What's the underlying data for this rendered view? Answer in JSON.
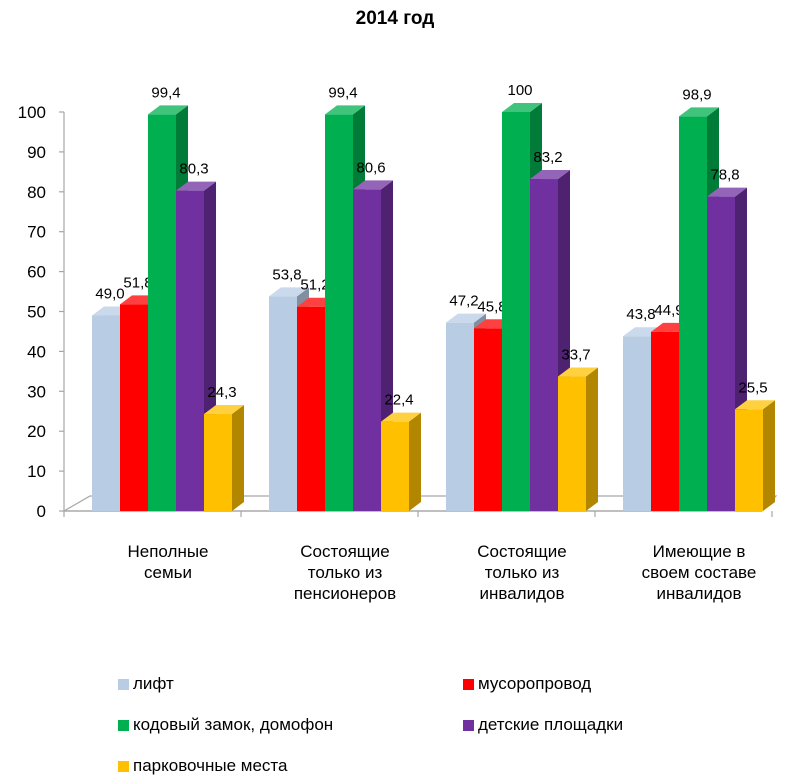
{
  "chart_data": {
    "type": "bar",
    "title": "2014 год",
    "categories": [
      [
        "Неполные",
        "семьи"
      ],
      [
        "Состоящие",
        "только из",
        "пенсионеров"
      ],
      [
        "Состоящие",
        "только из",
        "инвалидов"
      ],
      [
        "Имеющие в",
        "своем составе",
        "инвалидов"
      ]
    ],
    "series": [
      {
        "name": "лифт",
        "color": "#b8cce4",
        "values": [
          49.0,
          53.8,
          47.2,
          43.8
        ],
        "labels": [
          "49,0",
          "53,8",
          "47,2",
          "43,8"
        ]
      },
      {
        "name": "мусоропровод",
        "color": "#ff0000",
        "values": [
          51.8,
          51.2,
          45.8,
          44.9
        ],
        "labels": [
          "51,8",
          "51,2",
          "45,8",
          "44,9"
        ]
      },
      {
        "name": "кодовый замок, домофон",
        "color": "#00b050",
        "values": [
          99.4,
          99.4,
          100,
          98.9
        ],
        "labels": [
          "99,4",
          "99,4",
          "100",
          "98,9"
        ]
      },
      {
        "name": "детские площадки",
        "color": "#7030a0",
        "values": [
          80.3,
          80.6,
          83.2,
          78.8
        ],
        "labels": [
          "80,3",
          "80,6",
          "83,2",
          "78,8"
        ]
      },
      {
        "name": "парковочные места",
        "color": "#ffc000",
        "values": [
          24.3,
          22.4,
          33.7,
          25.5
        ],
        "labels": [
          "24,3",
          "22,4",
          "33,7",
          "25,5"
        ]
      }
    ],
    "ylim": [
      0,
      100
    ],
    "yticks": [
      0,
      10,
      20,
      30,
      40,
      50,
      60,
      70,
      80,
      90,
      100
    ],
    "grid": false,
    "legend_position": "bottom",
    "style": "3d-column"
  }
}
